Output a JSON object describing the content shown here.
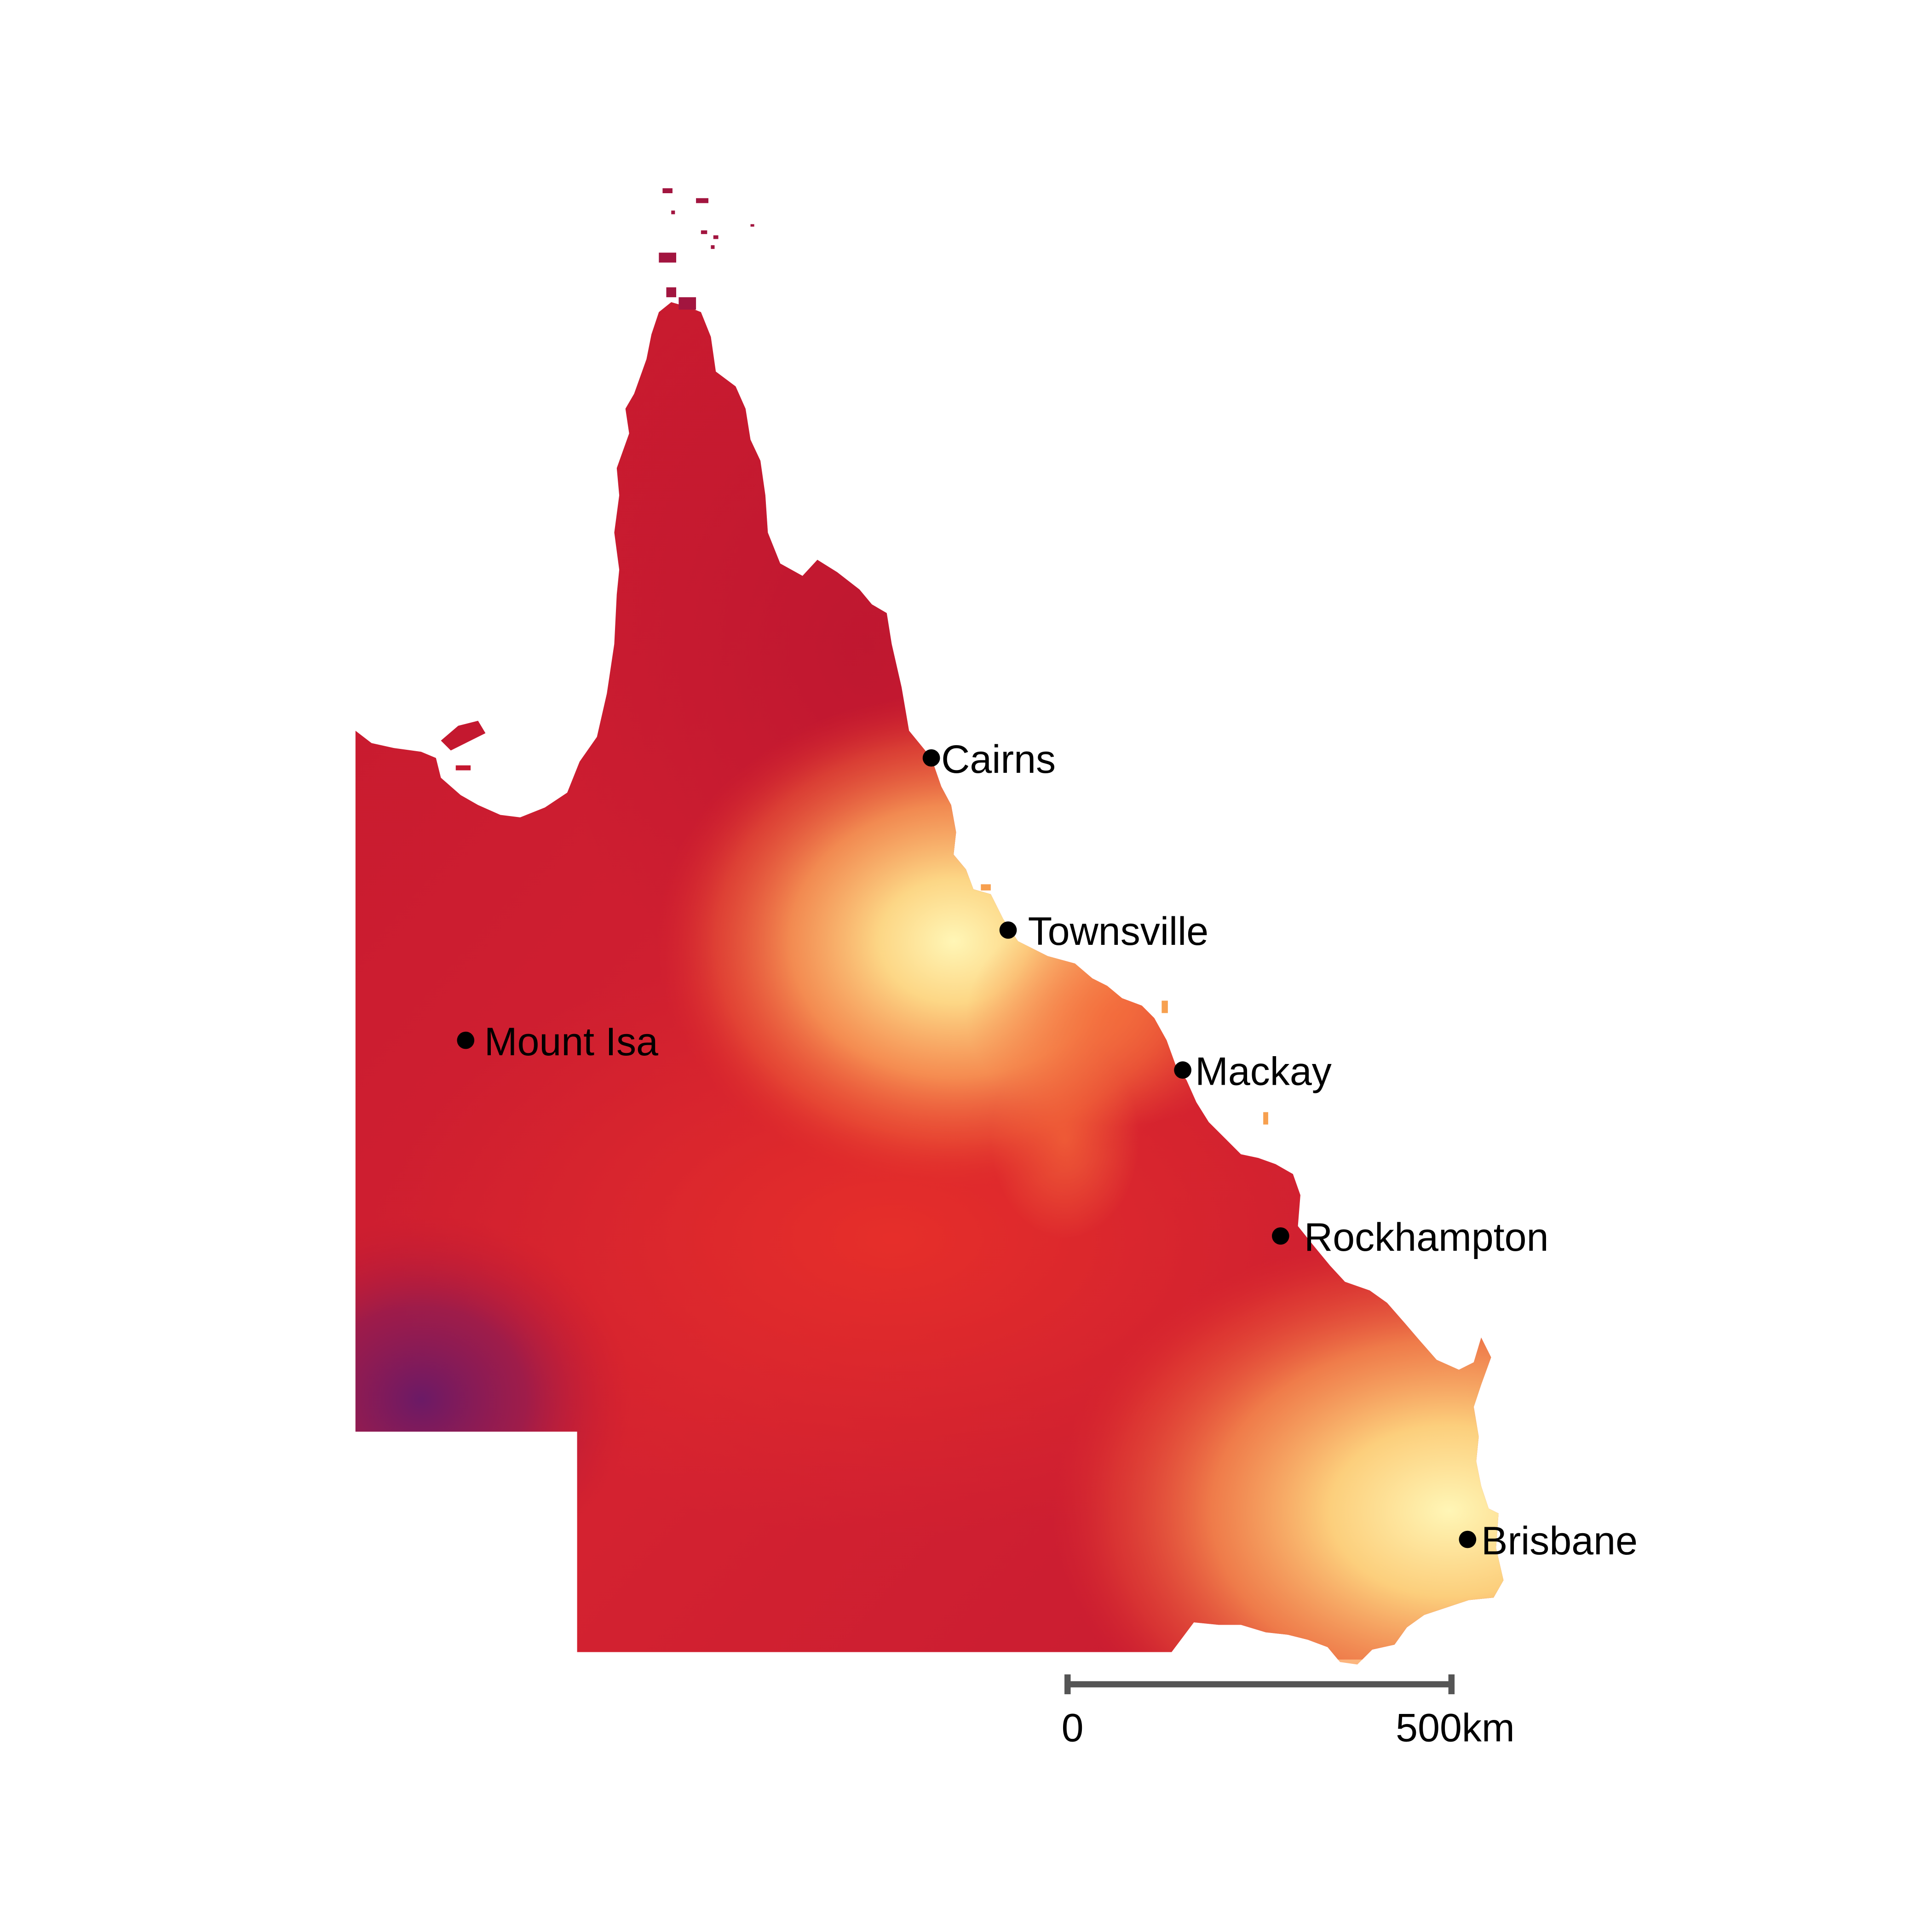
{
  "map": {
    "region": "Queensland",
    "colors": {
      "dark": "#7a1a5e",
      "deep_red": "#c4182f",
      "red": "#e02a2b",
      "orange": "#f36a3a",
      "light_orange": "#fdb863",
      "pale_yellow": "#fff3b0",
      "marker": "#000000",
      "scale_bar": "#555555"
    },
    "cities": [
      {
        "id": "cairns",
        "name": "Cairns"
      },
      {
        "id": "townsville",
        "name": "Townsville"
      },
      {
        "id": "mount-isa",
        "name": "Mount Isa"
      },
      {
        "id": "mackay",
        "name": "Mackay"
      },
      {
        "id": "rockhampton",
        "name": "Rockhampton"
      },
      {
        "id": "brisbane",
        "name": "Brisbane"
      }
    ],
    "scale_bar": {
      "start_label": "0",
      "end_label": "500km"
    }
  }
}
